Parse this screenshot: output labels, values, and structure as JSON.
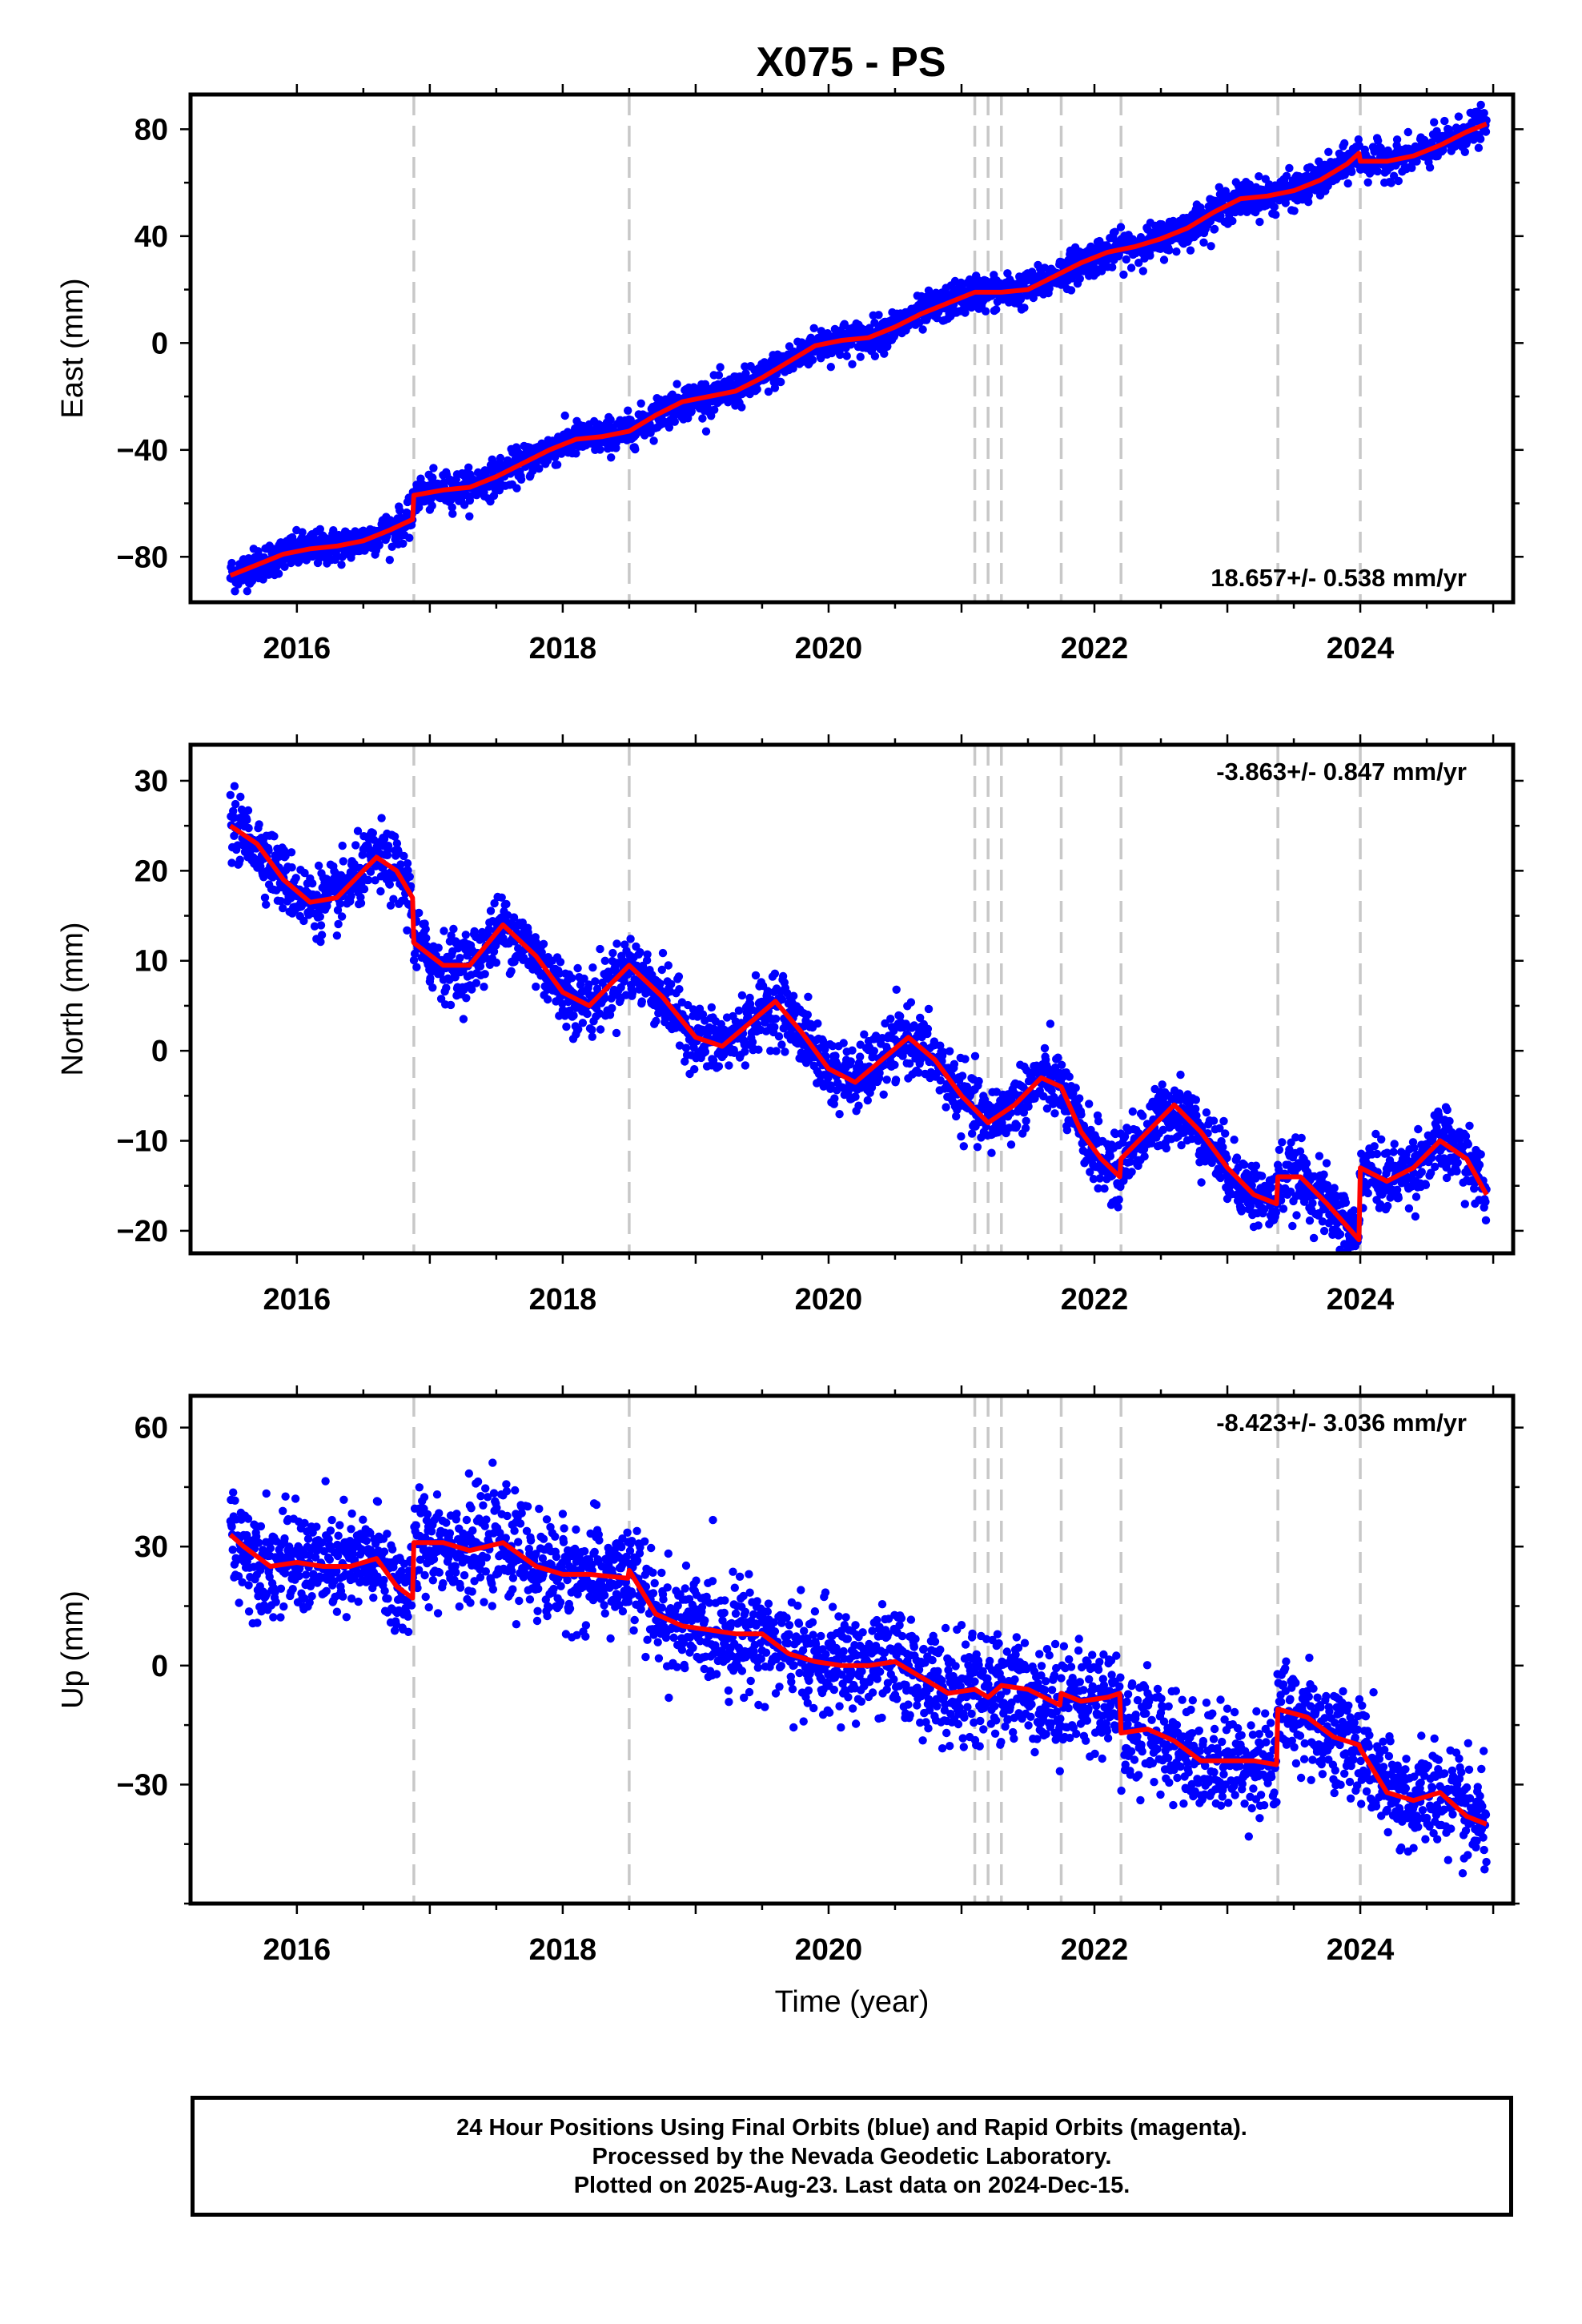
{
  "title": "X075 - PS",
  "colors": {
    "data": "#0000ff",
    "model": "#ff0000",
    "breaks": "#c8c8c8"
  },
  "caption": {
    "line1": "24 Hour Positions Using Final Orbits (blue) and Rapid Orbits (magenta).",
    "line2": "Processed by the Nevada Geodetic Laboratory.",
    "line3": "Plotted on 2025-Aug-23. Last data on 2024-Dec-15."
  },
  "chart_data": [
    {
      "type": "scatter",
      "title": "X075 - PS",
      "ylabel": "East (mm)",
      "xlabel": "",
      "xlim": [
        2015.2,
        2025.15
      ],
      "ylim": [
        -97,
        93
      ],
      "xticks": [
        2016,
        2018,
        2020,
        2022,
        2024
      ],
      "yticks": [
        -80,
        -40,
        0,
        40,
        80
      ],
      "rate": "18.657+/- 0.538 mm/yr",
      "break_years": [
        2016.88,
        2018.5,
        2021.1,
        2021.2,
        2021.3,
        2021.75,
        2022.2,
        2023.38,
        2024.0
      ],
      "model": {
        "x": [
          2015.5,
          2015.7,
          2015.9,
          2016.1,
          2016.3,
          2016.5,
          2016.7,
          2016.87,
          2016.88,
          2017.1,
          2017.3,
          2017.5,
          2017.7,
          2017.9,
          2018.1,
          2018.3,
          2018.5,
          2018.7,
          2018.9,
          2019.1,
          2019.3,
          2019.5,
          2019.7,
          2019.9,
          2020.1,
          2020.3,
          2020.5,
          2020.7,
          2020.9,
          2021.1,
          2021.3,
          2021.5,
          2021.7,
          2021.9,
          2022.1,
          2022.3,
          2022.5,
          2022.7,
          2022.9,
          2023.1,
          2023.3,
          2023.5,
          2023.7,
          2023.9,
          2023.99,
          2024.0,
          2024.2,
          2024.4,
          2024.6,
          2024.8,
          2024.95
        ],
        "y": [
          -87,
          -83,
          -79,
          -77,
          -76,
          -74,
          -70,
          -66,
          -57,
          -55,
          -54,
          -50,
          -45,
          -40,
          -36,
          -35,
          -33,
          -27,
          -22,
          -20,
          -18,
          -13,
          -7,
          -1,
          1,
          2,
          6,
          11,
          15,
          19,
          19,
          20,
          25,
          30,
          34,
          36,
          39,
          43,
          49,
          54,
          55,
          57,
          61,
          67,
          71,
          68,
          68,
          70,
          74,
          79,
          82
        ]
      },
      "data_noise_mm": 3.2
    },
    {
      "type": "scatter",
      "ylabel": "North (mm)",
      "xlabel": "",
      "xlim": [
        2015.2,
        2025.15
      ],
      "ylim": [
        -22.5,
        34
      ],
      "xticks": [
        2016,
        2018,
        2020,
        2022,
        2024
      ],
      "yticks": [
        -20,
        -10,
        0,
        10,
        20,
        30
      ],
      "rate": "-3.863+/- 0.847 mm/yr",
      "break_years": [
        2016.88,
        2018.5,
        2021.1,
        2021.2,
        2021.3,
        2021.75,
        2022.2,
        2023.38,
        2024.0
      ],
      "model": {
        "x": [
          2015.5,
          2015.7,
          2015.9,
          2016.1,
          2016.3,
          2016.5,
          2016.6,
          2016.75,
          2016.87,
          2016.88,
          2017.1,
          2017.3,
          2017.55,
          2017.8,
          2018.0,
          2018.2,
          2018.5,
          2018.75,
          2019.0,
          2019.2,
          2019.4,
          2019.6,
          2019.8,
          2020.0,
          2020.2,
          2020.4,
          2020.6,
          2020.8,
          2021.0,
          2021.2,
          2021.4,
          2021.6,
          2021.75,
          2021.9,
          2022.05,
          2022.19,
          2022.2,
          2022.4,
          2022.6,
          2022.8,
          2023.0,
          2023.2,
          2023.37,
          2023.38,
          2023.55,
          2023.75,
          2023.99,
          2024.0,
          2024.2,
          2024.4,
          2024.6,
          2024.8,
          2024.95
        ],
        "y": [
          25,
          23,
          19,
          16.5,
          17,
          20,
          21.5,
          20,
          17,
          12,
          9.5,
          9.5,
          14,
          10.5,
          6.5,
          5,
          9.5,
          6,
          1.5,
          0.5,
          3,
          5.5,
          2,
          -2,
          -3.5,
          -1,
          1.5,
          -1,
          -5,
          -8,
          -6,
          -3,
          -4,
          -9,
          -12,
          -14,
          -12,
          -9,
          -6,
          -9,
          -13,
          -16,
          -17,
          -14,
          -14,
          -17,
          -21,
          -13,
          -14.5,
          -13,
          -10,
          -12,
          -16
        ]
      },
      "data_noise_mm": 1.8
    },
    {
      "type": "scatter",
      "ylabel": "Up (mm)",
      "xlabel": "Time (year)",
      "xlim": [
        2015.2,
        2025.15
      ],
      "ylim": [
        -60,
        68
      ],
      "xticks": [
        2016,
        2018,
        2020,
        2022,
        2024
      ],
      "yticks": [
        -30,
        0,
        30,
        60
      ],
      "rate": "-8.423+/- 3.036 mm/yr",
      "break_years": [
        2016.88,
        2018.5,
        2021.1,
        2021.2,
        2021.3,
        2021.75,
        2022.2,
        2023.38,
        2024.0
      ],
      "model": {
        "x": [
          2015.5,
          2015.6,
          2015.8,
          2016.0,
          2016.2,
          2016.4,
          2016.6,
          2016.75,
          2016.87,
          2016.88,
          2017.1,
          2017.3,
          2017.55,
          2017.8,
          2018.0,
          2018.2,
          2018.49,
          2018.5,
          2018.7,
          2018.9,
          2019.1,
          2019.3,
          2019.5,
          2019.7,
          2019.9,
          2020.1,
          2020.3,
          2020.5,
          2020.7,
          2020.9,
          2021.1,
          2021.2,
          2021.3,
          2021.5,
          2021.74,
          2021.75,
          2021.9,
          2022.1,
          2022.19,
          2022.2,
          2022.4,
          2022.6,
          2022.8,
          2023.0,
          2023.2,
          2023.37,
          2023.38,
          2023.6,
          2023.8,
          2023.99,
          2024.0,
          2024.2,
          2024.4,
          2024.6,
          2024.8,
          2024.95
        ],
        "y": [
          33,
          30,
          25,
          26,
          25,
          25,
          27,
          20,
          17,
          31,
          31,
          29,
          31,
          25,
          23,
          23,
          22,
          24,
          13,
          10,
          9,
          8,
          8,
          3,
          1,
          0,
          0,
          1,
          -3,
          -7,
          -6,
          -8,
          -5,
          -6,
          -10,
          -7,
          -9,
          -8,
          -7,
          -17,
          -16,
          -19,
          -24,
          -24,
          -24,
          -25,
          -11,
          -13,
          -18,
          -20,
          -21,
          -32,
          -34,
          -32,
          -38,
          -40
        ]
      },
      "data_noise_mm": 6.5
    }
  ]
}
